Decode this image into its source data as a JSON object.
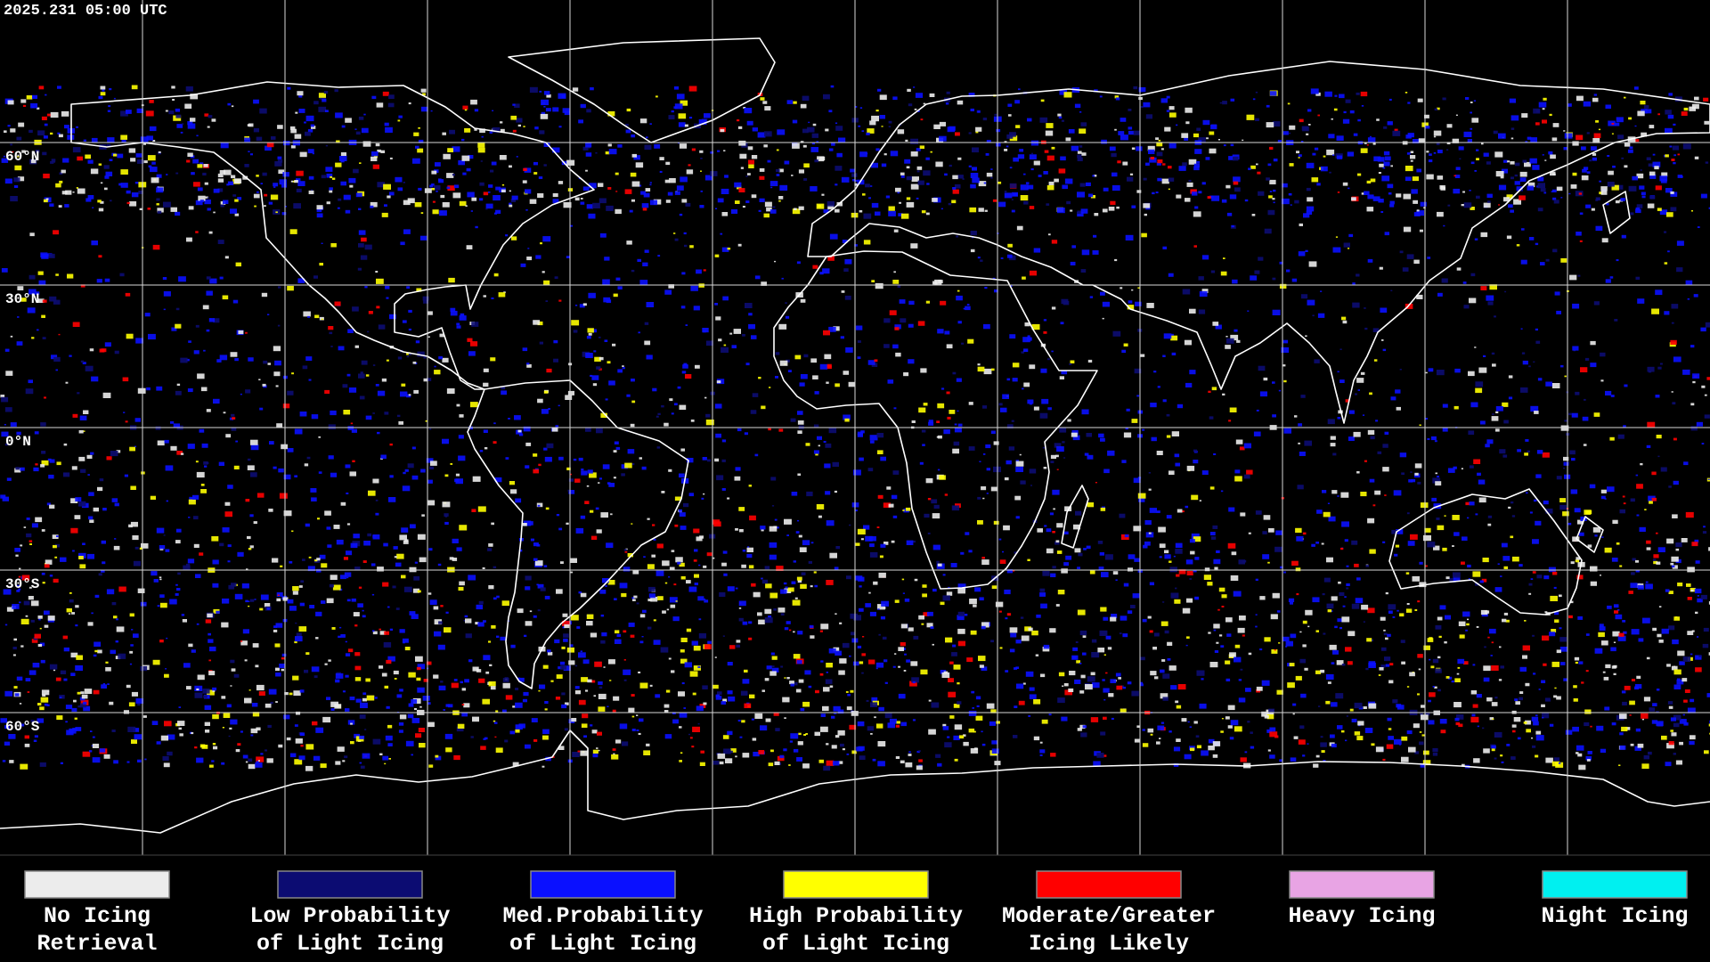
{
  "header": {
    "title": "2025.231 05:00 UTC"
  },
  "map": {
    "lat_labels": [
      "60°N",
      "30°N",
      "0°N",
      "30°S",
      "60°S"
    ]
  },
  "legend": {
    "items": [
      {
        "lines": [
          "No Icing",
          "Retrieval"
        ],
        "color": "#ececec"
      },
      {
        "lines": [
          "Low Probability",
          "of Light Icing"
        ],
        "color": "#0c0c72"
      },
      {
        "lines": [
          "Med.Probability",
          "of Light Icing"
        ],
        "color": "#0a10ff"
      },
      {
        "lines": [
          "High Probability",
          "of Light Icing"
        ],
        "color": "#ffff00"
      },
      {
        "lines": [
          "Moderate/Greater",
          "Icing Likely"
        ],
        "color": "#ff0000"
      },
      {
        "lines": [
          "Heavy Icing"
        ],
        "color": "#e8a4e4"
      },
      {
        "lines": [
          "Night Icing"
        ],
        "color": "#00f0f0"
      }
    ]
  }
}
